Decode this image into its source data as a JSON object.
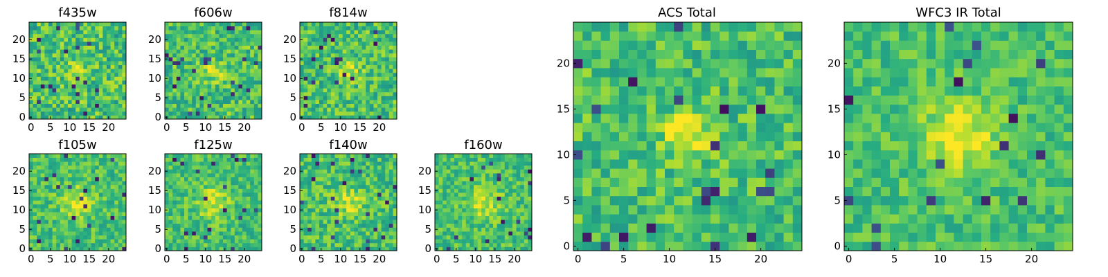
{
  "figure": {
    "colormap": "viridis",
    "colormap_stops": [
      "#440154",
      "#3b528b",
      "#21918c",
      "#27ad81",
      "#5ec962",
      "#aadc32",
      "#fde725"
    ]
  },
  "chart_data": [
    {
      "type": "heatmap",
      "title": "f435w",
      "xlabel": "",
      "ylabel": "",
      "size": 25,
      "xlim": [
        -0.5,
        24.5
      ],
      "ylim": [
        -0.5,
        24.5
      ],
      "xticks": [
        0,
        5,
        10,
        15,
        20
      ],
      "yticks": [
        0,
        5,
        10,
        15,
        20
      ],
      "source_peak": [
        12,
        12
      ],
      "source_width": 2.0,
      "source_amp": 0.25,
      "noise": 0.55,
      "seed": 11
    },
    {
      "type": "heatmap",
      "title": "f606w",
      "xlabel": "",
      "ylabel": "",
      "size": 25,
      "xlim": [
        -0.5,
        24.5
      ],
      "ylim": [
        -0.5,
        24.5
      ],
      "xticks": [
        0,
        5,
        10,
        15,
        20
      ],
      "yticks": [
        0,
        5,
        10,
        15,
        20
      ],
      "source_peak": [
        12,
        12
      ],
      "source_width": 1.8,
      "source_amp": 0.35,
      "noise": 0.5,
      "seed": 23
    },
    {
      "type": "heatmap",
      "title": "f814w",
      "xlabel": "",
      "ylabel": "",
      "size": 25,
      "xlim": [
        -0.5,
        24.5
      ],
      "ylim": [
        -0.5,
        24.5
      ],
      "xticks": [
        0,
        5,
        10,
        15,
        20
      ],
      "yticks": [
        0,
        5,
        10,
        15,
        20
      ],
      "source_peak": [
        12,
        12
      ],
      "source_width": 2.0,
      "source_amp": 0.3,
      "noise": 0.5,
      "seed": 37
    },
    {
      "type": "heatmap",
      "title": "f105w",
      "xlabel": "",
      "ylabel": "",
      "size": 25,
      "xlim": [
        -0.5,
        24.5
      ],
      "ylim": [
        -0.5,
        24.5
      ],
      "xticks": [
        0,
        5,
        10,
        15,
        20
      ],
      "yticks": [
        0,
        5,
        10,
        15,
        20
      ],
      "source_peak": [
        12,
        12
      ],
      "source_width": 3.0,
      "source_amp": 0.3,
      "noise": 0.4,
      "seed": 41
    },
    {
      "type": "heatmap",
      "title": "f125w",
      "xlabel": "",
      "ylabel": "",
      "size": 25,
      "xlim": [
        -0.5,
        24.5
      ],
      "ylim": [
        -0.5,
        24.5
      ],
      "xticks": [
        0,
        5,
        10,
        15,
        20
      ],
      "yticks": [
        0,
        5,
        10,
        15,
        20
      ],
      "source_peak": [
        12,
        12
      ],
      "source_width": 3.0,
      "source_amp": 0.3,
      "noise": 0.4,
      "seed": 53
    },
    {
      "type": "heatmap",
      "title": "f140w",
      "xlabel": "",
      "ylabel": "",
      "size": 25,
      "xlim": [
        -0.5,
        24.5
      ],
      "ylim": [
        -0.5,
        24.5
      ],
      "xticks": [
        0,
        5,
        10,
        15,
        20
      ],
      "yticks": [
        0,
        5,
        10,
        15,
        20
      ],
      "source_peak": [
        12,
        12
      ],
      "source_width": 3.0,
      "source_amp": 0.25,
      "noise": 0.45,
      "seed": 67
    },
    {
      "type": "heatmap",
      "title": "f160w",
      "xlabel": "",
      "ylabel": "",
      "size": 25,
      "xlim": [
        -0.5,
        24.5
      ],
      "ylim": [
        -0.5,
        24.5
      ],
      "xticks": [
        0,
        5,
        10,
        15,
        20
      ],
      "yticks": [
        0,
        5,
        10,
        15,
        20
      ],
      "source_peak": [
        12,
        12
      ],
      "source_width": 3.0,
      "source_amp": 0.3,
      "noise": 0.4,
      "seed": 79
    },
    {
      "type": "heatmap",
      "title": "ACS Total",
      "xlabel": "",
      "ylabel": "",
      "size": 25,
      "xlim": [
        -0.5,
        24.5
      ],
      "ylim": [
        -0.5,
        24.5
      ],
      "xticks": [
        0,
        5,
        10,
        15,
        20
      ],
      "yticks": [
        0,
        5,
        10,
        15,
        20
      ],
      "source_peak": [
        12,
        12
      ],
      "source_width": 1.8,
      "source_amp": 0.45,
      "noise": 0.45,
      "seed": 91
    },
    {
      "type": "heatmap",
      "title": "WFC3 IR Total",
      "xlabel": "",
      "ylabel": "",
      "size": 25,
      "xlim": [
        -0.5,
        24.5
      ],
      "ylim": [
        -0.5,
        24.5
      ],
      "xticks": [
        0,
        5,
        10,
        15,
        20
      ],
      "yticks": [
        0,
        5,
        10,
        15,
        20
      ],
      "source_peak": [
        12,
        12
      ],
      "source_width": 2.8,
      "source_amp": 0.4,
      "noise": 0.35,
      "seed": 103
    }
  ]
}
